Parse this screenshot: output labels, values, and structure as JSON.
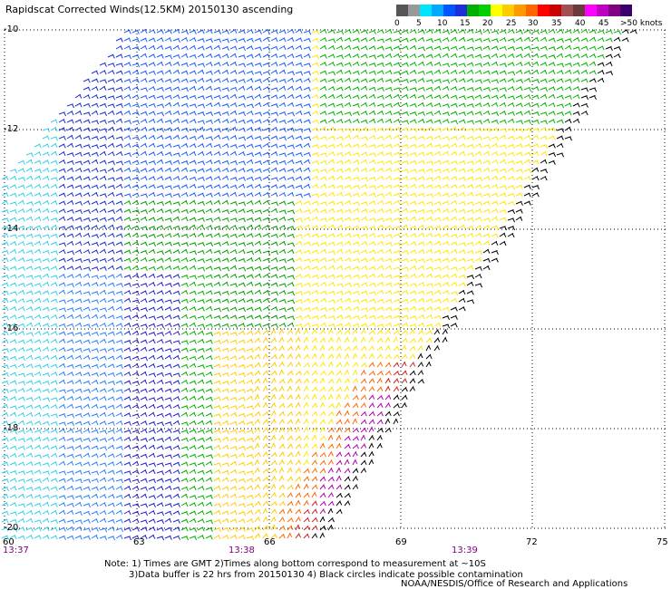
{
  "title": "Rapidscat Corrected Winds(12.5KM) 20150130 ascending",
  "colorbar": {
    "labels": [
      "0",
      "5",
      "10",
      "15",
      "20",
      "25",
      "30",
      "35",
      "40",
      "45",
      ">50 knots"
    ],
    "colors": [
      "#555555",
      "#999999",
      "#00e5ff",
      "#00aaff",
      "#0055ff",
      "#1f2fd8",
      "#00b000",
      "#00d000",
      "#ffff00",
      "#ffcc00",
      "#ff9900",
      "#ff6600",
      "#ff0000",
      "#cc0000",
      "#a05050",
      "#6b3a3a",
      "#ff00ff",
      "#c000c0",
      "#800080",
      "#3a006e"
    ]
  },
  "lat_labels": [
    "-10",
    "-12",
    "-14",
    "-16",
    "-18",
    "-20"
  ],
  "lon_labels": [
    "60",
    "63",
    "66",
    "69",
    "72",
    "75"
  ],
  "time_labels": [
    "13:37",
    "13:38",
    "13:39"
  ],
  "notes": [
    "Note: 1) Times are GMT 2)Times along bottom correspond to measurement at ~10S",
    "3)Data buffer is 22 hrs from 20150130 4) Black circles indicate possible contamination",
    "NOAA/NESDIS/Office of Research and Applications"
  ]
}
